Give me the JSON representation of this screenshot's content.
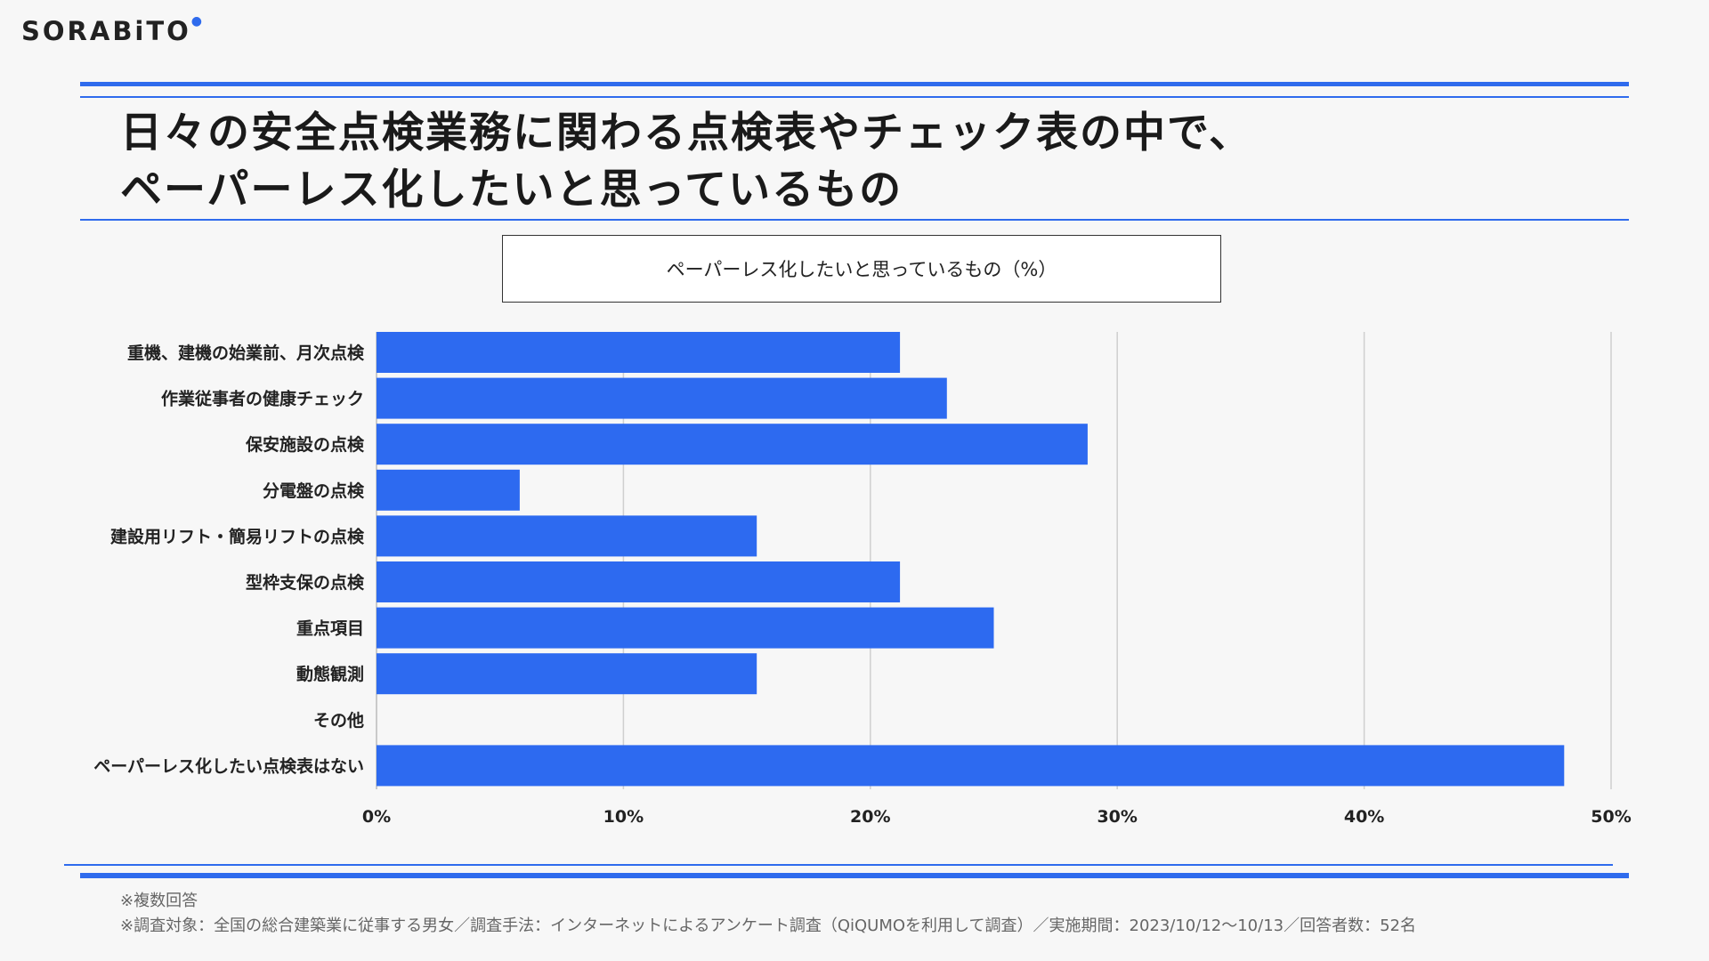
{
  "brand": {
    "logo_text": "SORABiTO"
  },
  "colors": {
    "accent": "#2f6bed",
    "bar": "#2d6af0",
    "grid": "#cfcfcf"
  },
  "slide": {
    "title_line1": "日々の安全点検業務に関わる点検表やチェック表の中で、",
    "title_line2": "ペーパーレス化したいと思っているもの"
  },
  "chart_data": {
    "type": "bar",
    "orientation": "horizontal",
    "title": "ペーパーレス化したいと思っているもの（%）",
    "categories": [
      "重機、建機の始業前、月次点検",
      "作業従事者の健康チェック",
      "保安施設の点検",
      "分電盤の点検",
      "建設用リフト・簡易リフトの点検",
      "型枠支保の点検",
      "重点項目",
      "動態観測",
      "その他",
      "ペーパーレス化したい点検表はない"
    ],
    "values": [
      21.2,
      23.1,
      28.8,
      5.8,
      15.4,
      21.2,
      25.0,
      15.4,
      0,
      48.1
    ],
    "xlim": [
      0,
      50
    ],
    "xticks": [
      "0%",
      "10%",
      "20%",
      "30%",
      "40%",
      "50%"
    ],
    "grid": true
  },
  "footnotes": {
    "note1": "※複数回答",
    "note2": "※調査対象：全国の総合建築業に従事する男女／調査手法：インターネットによるアンケート調査（QiQUMOを利用して調査）／実施期間：2023/10/12〜10/13／回答者数：52名"
  }
}
